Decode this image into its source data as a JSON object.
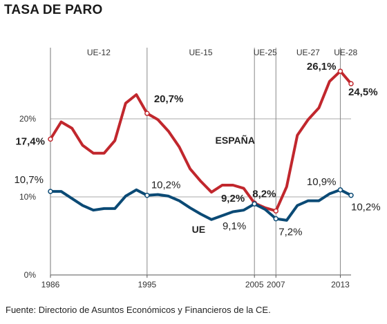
{
  "chart_data": {
    "type": "line",
    "title": "TASA DE PARO",
    "source": "Fuente: Directorio de Asuntos Económicos y Financieros de la CE.",
    "ylim": [
      0,
      28
    ],
    "xlim": [
      1986,
      2014
    ],
    "y_ticks": [
      {
        "value": 0,
        "label": "0%"
      },
      {
        "value": 10,
        "label": "10%"
      },
      {
        "value": 20,
        "label": "20%"
      }
    ],
    "x_ticks": [
      {
        "value": 1986,
        "label": "1986"
      },
      {
        "value": 1995,
        "label": "1995"
      },
      {
        "value": 2005,
        "label": "2005"
      },
      {
        "value": 2007,
        "label": "2007"
      },
      {
        "value": 2013,
        "label": "2013"
      }
    ],
    "periods": [
      {
        "label": "UE-12",
        "start": 1986,
        "end": 1995
      },
      {
        "label": "UE-15",
        "start": 1995,
        "end": 2005
      },
      {
        "label": "UE-25",
        "start": 2005,
        "end": 2007
      },
      {
        "label": "UE-27",
        "start": 2007,
        "end": 2013
      },
      {
        "label": "UE-28",
        "start": 2013,
        "end": 2014
      }
    ],
    "grid": true,
    "x": [
      1986,
      1987,
      1988,
      1989,
      1990,
      1991,
      1992,
      1993,
      1994,
      1995,
      1996,
      1997,
      1998,
      1999,
      2000,
      2001,
      2002,
      2003,
      2004,
      2005,
      2006,
      2007,
      2008,
      2009,
      2010,
      2011,
      2012,
      2013,
      2014
    ],
    "series": [
      {
        "name": "ESPAÑA",
        "color": "#c1272d",
        "values": [
          17.4,
          19.6,
          18.8,
          16.6,
          15.6,
          15.6,
          17.2,
          22.0,
          23.1,
          20.7,
          19.9,
          18.4,
          16.4,
          13.6,
          12.0,
          10.6,
          11.5,
          11.5,
          11.1,
          9.2,
          8.6,
          8.2,
          11.3,
          17.9,
          19.9,
          21.4,
          24.8,
          26.1,
          24.5
        ]
      },
      {
        "name": "UE",
        "color": "#0b4a75",
        "values": [
          10.7,
          10.7,
          9.8,
          8.9,
          8.3,
          8.5,
          8.5,
          10.1,
          10.9,
          10.2,
          10.3,
          10.1,
          9.5,
          8.6,
          7.8,
          7.1,
          7.6,
          8.1,
          8.3,
          9.1,
          8.4,
          7.2,
          7.0,
          8.9,
          9.5,
          9.5,
          10.4,
          10.9,
          10.2
        ]
      }
    ],
    "annotations": [
      {
        "text": "17,4%",
        "series": 0,
        "x": 1986,
        "bold": true
      },
      {
        "text": "20,7%",
        "series": 0,
        "x": 1995,
        "bold": true
      },
      {
        "text": "9,2%",
        "series": 0,
        "x": 2005,
        "bold": true
      },
      {
        "text": "8,2%",
        "series": 0,
        "x": 2007,
        "bold": true
      },
      {
        "text": "26,1%",
        "series": 0,
        "x": 2013,
        "bold": true
      },
      {
        "text": "24,5%",
        "series": 0,
        "x": 2014,
        "bold": true
      },
      {
        "text": "10,7%",
        "series": 1,
        "x": 1986,
        "bold": false
      },
      {
        "text": "10,2%",
        "series": 1,
        "x": 1995,
        "bold": false
      },
      {
        "text": "9,1%",
        "series": 1,
        "x": 2005,
        "bold": false
      },
      {
        "text": "7,2%",
        "series": 1,
        "x": 2007,
        "bold": false
      },
      {
        "text": "10,9%",
        "series": 1,
        "x": 2013,
        "bold": false
      },
      {
        "text": "10,2%",
        "series": 1,
        "x": 2014,
        "bold": false
      }
    ],
    "marked_points": [
      {
        "series": 0,
        "x": 1986
      },
      {
        "series": 0,
        "x": 1995
      },
      {
        "series": 0,
        "x": 2005
      },
      {
        "series": 0,
        "x": 2007
      },
      {
        "series": 0,
        "x": 2013
      },
      {
        "series": 0,
        "x": 2014
      },
      {
        "series": 1,
        "x": 1986
      },
      {
        "series": 1,
        "x": 1995
      },
      {
        "series": 1,
        "x": 2005
      },
      {
        "series": 1,
        "x": 2007
      },
      {
        "series": 1,
        "x": 2013
      },
      {
        "series": 1,
        "x": 2014
      }
    ]
  }
}
